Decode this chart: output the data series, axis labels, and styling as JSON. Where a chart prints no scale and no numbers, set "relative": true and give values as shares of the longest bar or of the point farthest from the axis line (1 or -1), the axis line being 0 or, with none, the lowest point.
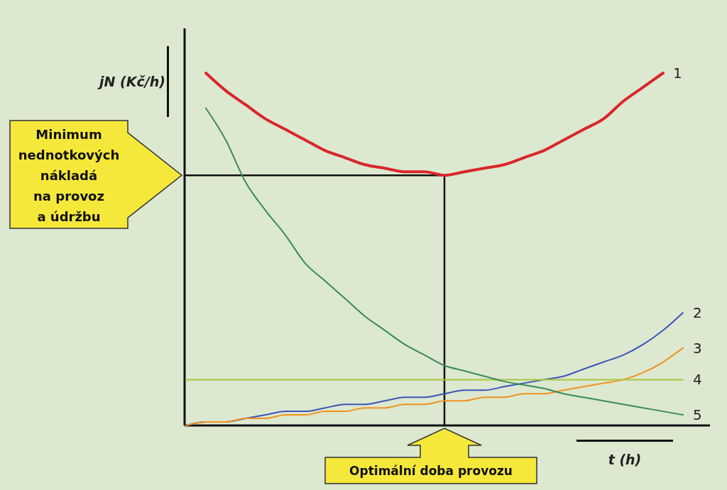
{
  "chart_data": {
    "type": "line",
    "relative": true,
    "xlabel": "t (h)",
    "ylabel": "jN (Kč/h)",
    "categories": [
      null,
      null,
      null,
      null,
      null,
      null,
      null,
      null,
      null,
      null,
      null,
      null,
      null,
      null,
      null,
      null,
      null,
      null,
      null,
      null,
      null,
      null,
      null,
      null,
      null,
      null
    ],
    "series": [
      {
        "name": "1",
        "color": "#d9262b",
        "values": [
          null,
          1.0,
          0.95,
          0.91,
          0.87,
          0.84,
          0.81,
          0.78,
          0.76,
          0.74,
          0.73,
          0.72,
          0.72,
          0.71,
          0.72,
          0.73,
          0.74,
          0.76,
          0.78,
          0.81,
          0.84,
          0.87,
          0.92,
          0.96,
          1.0,
          null
        ]
      },
      {
        "name": "2",
        "color": "#3b55b8",
        "values": [
          0,
          0.01,
          0.01,
          0.02,
          0.03,
          0.04,
          0.04,
          0.05,
          0.06,
          0.06,
          0.07,
          0.08,
          0.08,
          0.09,
          0.1,
          0.1,
          0.11,
          0.12,
          0.13,
          0.14,
          0.16,
          0.18,
          0.2,
          0.23,
          0.27,
          0.32
        ]
      },
      {
        "name": "3",
        "color": "#f0921e",
        "values": [
          0,
          0.01,
          0.01,
          0.02,
          0.02,
          0.03,
          0.03,
          0.04,
          0.04,
          0.05,
          0.05,
          0.06,
          0.06,
          0.07,
          0.07,
          0.08,
          0.08,
          0.09,
          0.09,
          0.1,
          0.11,
          0.12,
          0.13,
          0.15,
          0.18,
          0.22
        ]
      },
      {
        "name": "4",
        "color": "#a8c83c",
        "values": [
          0.13,
          0.13,
          0.13,
          0.13,
          0.13,
          0.13,
          0.13,
          0.13,
          0.13,
          0.13,
          0.13,
          0.13,
          0.13,
          0.13,
          0.13,
          0.13,
          0.13,
          0.13,
          0.13,
          0.13,
          0.13,
          0.13,
          0.13,
          0.13,
          0.13,
          0.13
        ]
      },
      {
        "name": "5",
        "color": "#3a8a5a",
        "values": [
          null,
          0.9,
          0.81,
          0.69,
          0.61,
          0.54,
          0.46,
          0.41,
          0.36,
          0.31,
          0.27,
          0.23,
          0.2,
          0.17,
          0.155,
          0.14,
          0.125,
          0.115,
          0.105,
          0.09,
          0.08,
          0.07,
          0.06,
          0.05,
          0.04,
          0.03
        ]
      }
    ],
    "ref_lines": [
      {
        "axis": "y",
        "value": 0.71,
        "color": "#111111"
      }
    ],
    "annotations": [
      "Minimum nednotkových nákladá na provoz a údržbu",
      "Optimální doba provozu"
    ]
  }
}
